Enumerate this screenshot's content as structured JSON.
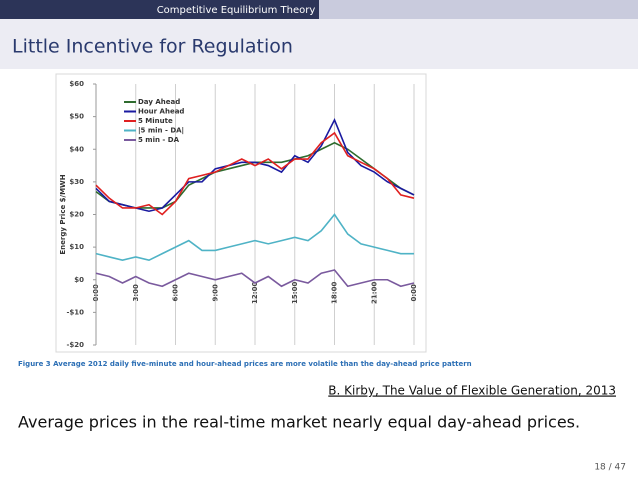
{
  "header": {
    "section": "Competitive Equilibrium Theory"
  },
  "frame_title": "Little Incentive for Regulation",
  "chart_data": {
    "type": "line",
    "y_label": "Energy Price $/MWH",
    "x": [
      0,
      1,
      2,
      3,
      4,
      5,
      6,
      7,
      8,
      9,
      10,
      11,
      12,
      13,
      14,
      15,
      16,
      17,
      18,
      19,
      20,
      21,
      22,
      23,
      24
    ],
    "xlim": [
      0,
      24
    ],
    "xticks": [
      {
        "value": 0,
        "label": "0:00"
      },
      {
        "value": 3,
        "label": "3:00"
      },
      {
        "value": 6,
        "label": "6:00"
      },
      {
        "value": 9,
        "label": "9:00"
      },
      {
        "value": 12,
        "label": "12:00"
      },
      {
        "value": 15,
        "label": "15:00"
      },
      {
        "value": 18,
        "label": "18:00"
      },
      {
        "value": 21,
        "label": "21:00"
      },
      {
        "value": 24,
        "label": "0:00"
      }
    ],
    "ylim": [
      -20,
      60
    ],
    "yticks": [
      {
        "value": 60,
        "label": "$60"
      },
      {
        "value": 50,
        "label": "$50"
      },
      {
        "value": 40,
        "label": "$40"
      },
      {
        "value": 30,
        "label": "$30"
      },
      {
        "value": 20,
        "label": "$20"
      },
      {
        "value": 10,
        "label": "$10"
      },
      {
        "value": 0,
        "label": "$0"
      },
      {
        "value": -10,
        "label": "-$10"
      },
      {
        "value": -20,
        "label": "-$20"
      }
    ],
    "grid": true,
    "legend": "top-left",
    "series": [
      {
        "name": "Day Ahead",
        "color": "#2e6b2e",
        "values": [
          27,
          24,
          23,
          22,
          22,
          22,
          24,
          29,
          31,
          33,
          34,
          35,
          36,
          36,
          36,
          37,
          38,
          40,
          42,
          40,
          37,
          34,
          31,
          28,
          26
        ]
      },
      {
        "name": "Hour Ahead",
        "color": "#1a1aa0",
        "values": [
          28,
          24,
          23,
          22,
          21,
          22,
          26,
          30,
          30,
          34,
          35,
          36,
          36,
          35,
          33,
          38,
          36,
          41,
          49,
          39,
          35,
          33,
          30,
          28,
          26
        ]
      },
      {
        "name": "5 Minute",
        "color": "#e02020",
        "values": [
          29,
          25,
          22,
          22,
          23,
          20,
          24,
          31,
          32,
          33,
          35,
          37,
          35,
          37,
          34,
          37,
          37,
          42,
          45,
          38,
          36,
          34,
          31,
          26,
          25
        ]
      },
      {
        "name": "|5 min - DA|",
        "color": "#4fb3c6",
        "values": [
          8,
          7,
          6,
          7,
          6,
          8,
          10,
          12,
          9,
          9,
          10,
          11,
          12,
          11,
          12,
          13,
          12,
          15,
          20,
          14,
          11,
          10,
          9,
          8,
          8
        ]
      },
      {
        "name": "5 min - DA",
        "color": "#7a5a9e",
        "values": [
          2,
          1,
          -1,
          1,
          -1,
          -2,
          0,
          2,
          1,
          0,
          1,
          2,
          -1,
          1,
          -2,
          0,
          -1,
          2,
          3,
          -2,
          -1,
          0,
          0,
          -2,
          -1
        ]
      }
    ]
  },
  "caption": "Figure 3 Average 2012 daily five-minute and hour-ahead prices are more volatile than the day-ahead price pattern",
  "citation": "B. Kirby, The Value of Flexible Generation, 2013",
  "body": "Average prices in the real-time market nearly equal day-ahead prices.",
  "page_number": "18 / 47"
}
